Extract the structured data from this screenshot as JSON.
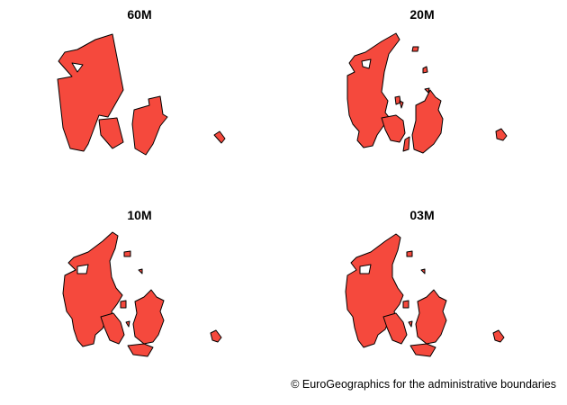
{
  "colors": {
    "land_fill": "#f5493d",
    "land_stroke": "#000000",
    "background": "#ffffff"
  },
  "panels": [
    {
      "title": "60M"
    },
    {
      "title": "20M"
    },
    {
      "title": "10M"
    },
    {
      "title": "03M"
    }
  ],
  "caption": "© EuroGeographics for the administrative boundaries"
}
